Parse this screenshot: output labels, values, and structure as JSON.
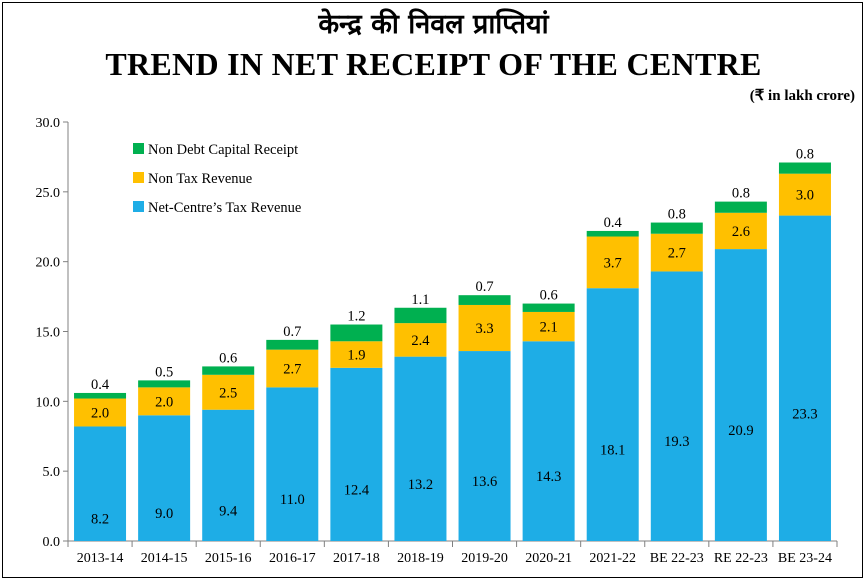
{
  "header": {
    "title_hindi": "केन्द्र की निवल प्राप्तियां",
    "title": "TREND IN NET RECEIPT OF THE CENTRE",
    "units": "(₹ in lakh crore)"
  },
  "chart_data": {
    "type": "bar",
    "stacked": true,
    "categories": [
      "2013-14",
      "2014-15",
      "2015-16",
      "2016-17",
      "2017-18",
      "2018-19",
      "2019-20",
      "2020-21",
      "2021-22",
      "BE 22-23",
      "RE 22-23",
      "BE 23-24"
    ],
    "series": [
      {
        "name": "Net-Centre’s Tax Revenue",
        "color": "#1EADE6",
        "values": [
          8.2,
          9.0,
          9.4,
          11.0,
          12.4,
          13.2,
          13.6,
          14.3,
          18.1,
          19.3,
          20.9,
          23.3
        ]
      },
      {
        "name": "Non Tax Revenue",
        "color": "#FFC000",
        "values": [
          2.0,
          2.0,
          2.5,
          2.7,
          1.9,
          2.4,
          3.3,
          2.1,
          3.7,
          2.7,
          2.6,
          3.0
        ]
      },
      {
        "name": "Non Debt Capital Receipt",
        "color": "#00B050",
        "values": [
          0.4,
          0.5,
          0.6,
          0.7,
          1.2,
          1.1,
          0.7,
          0.6,
          0.4,
          0.8,
          0.8,
          0.8
        ]
      }
    ],
    "y_ticks": [
      "0.0",
      "5.0",
      "10.0",
      "15.0",
      "20.0",
      "25.0",
      "30.0"
    ],
    "ylim": [
      0,
      30
    ],
    "legend_position": "top-left",
    "legend_order": [
      "Non Debt Capital Receipt",
      "Non Tax Revenue",
      "Net-Centre’s Tax Revenue"
    ],
    "grid": false
  }
}
